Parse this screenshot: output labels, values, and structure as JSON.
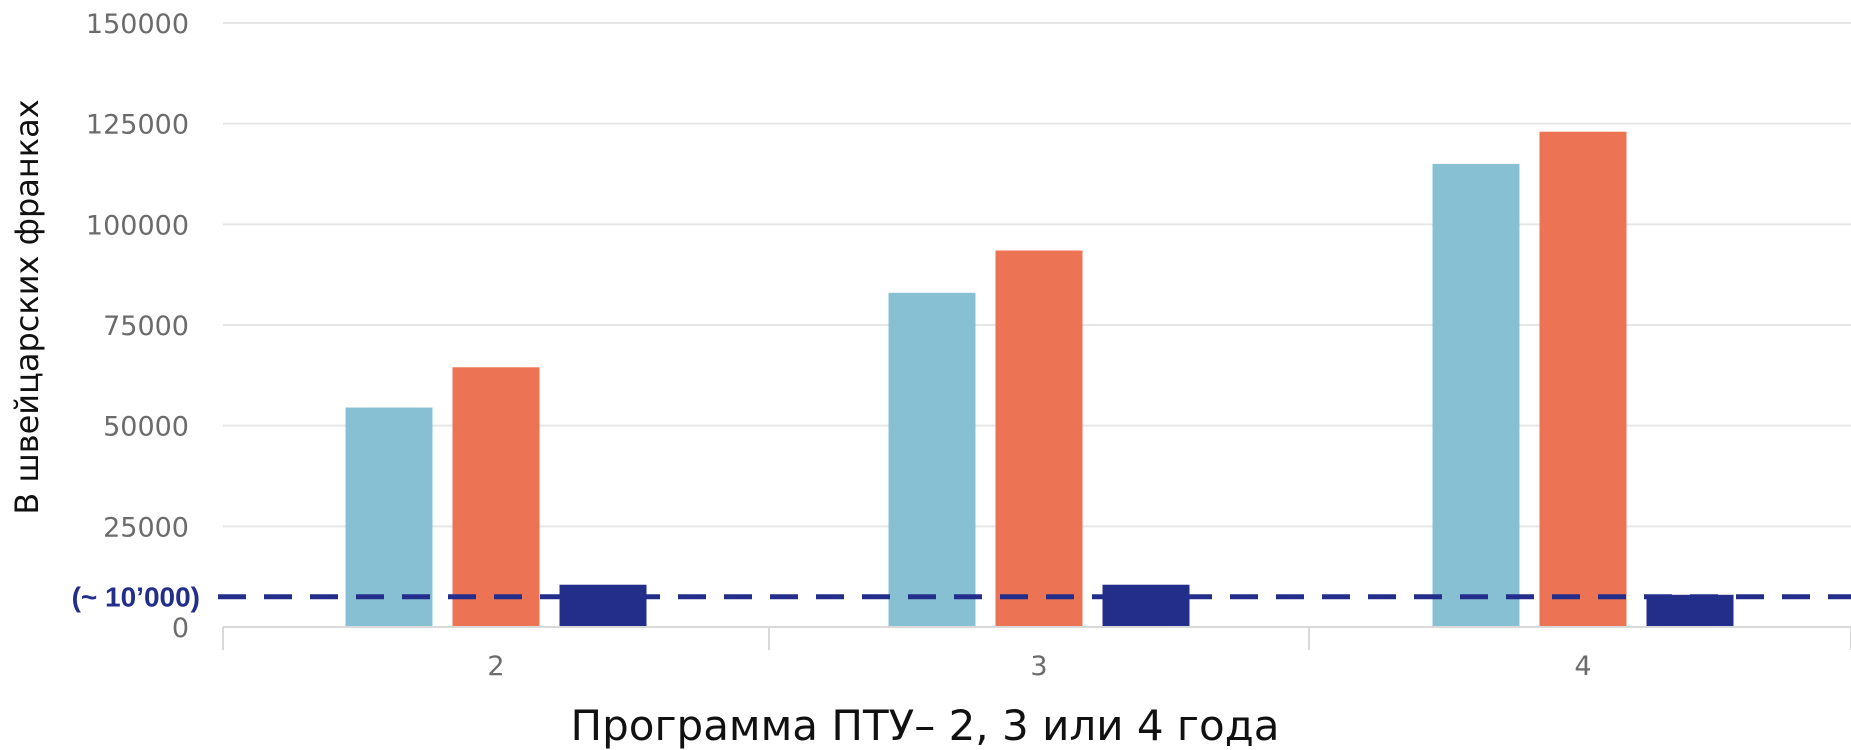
{
  "chart_data": {
    "type": "bar",
    "title": "",
    "xlabel": "Программа ПТУ– 2, 3 или 4 года",
    "ylabel": "В швейцарских франках",
    "categories": [
      "2",
      "3",
      "4"
    ],
    "y_ticks": [
      "0",
      "25000",
      "50000",
      "75000",
      "100000",
      "125000",
      "150000"
    ],
    "ylim": [
      0,
      150000
    ],
    "grid": true,
    "legend": "none",
    "series": [
      {
        "values": [
          54500,
          83000,
          115000
        ],
        "color": "#88C0D3"
      },
      {
        "values": [
          64500,
          93500,
          123000
        ],
        "color": "#EC7353"
      },
      {
        "values": [
          10500,
          10500,
          8000
        ],
        "color": "#232E8B"
      }
    ],
    "reference_line": {
      "value": 10500,
      "label": "(~ 10’000)",
      "color": "#232E8B",
      "style": "dashed"
    }
  }
}
